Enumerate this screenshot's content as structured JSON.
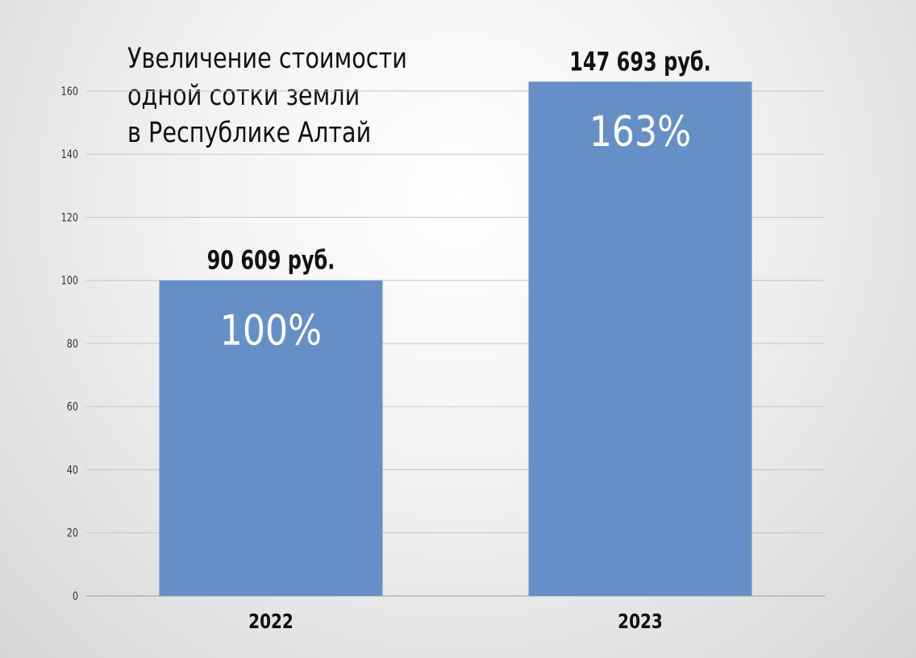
{
  "chart_data": {
    "type": "bar",
    "title_lines": [
      "Увеличение стоимости",
      "одной сотки земли",
      "в Республике Алтай"
    ],
    "categories": [
      "2022",
      "2023"
    ],
    "values": [
      100,
      163
    ],
    "value_labels": [
      "100%",
      "163%"
    ],
    "top_labels": [
      "90 609 руб.",
      "147 693 руб."
    ],
    "ylim": [
      0,
      160
    ],
    "yticks": [
      0,
      20,
      40,
      60,
      80,
      100,
      120,
      140,
      160
    ],
    "xlabel": "",
    "ylabel": "",
    "grid": true,
    "legend": "none",
    "bar_color": "#6690c5"
  }
}
